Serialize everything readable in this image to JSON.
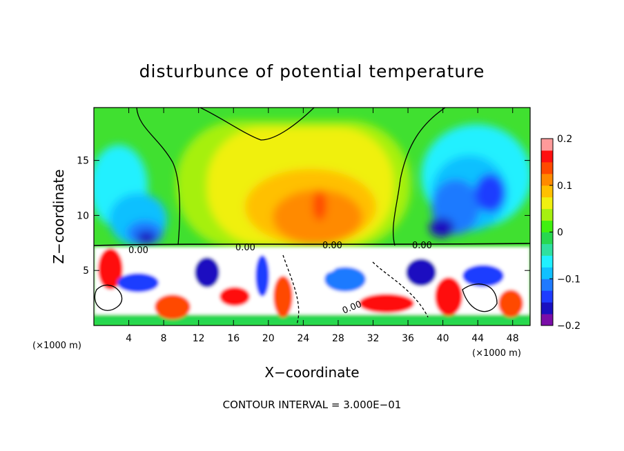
{
  "chart_data": {
    "type": "heatmap",
    "title": "disturbunce of potential temperature",
    "xlabel": "X−coordinate",
    "ylabel": "Z−coordinate",
    "x_unit": "(×1000 m)",
    "x_unit_right": "(×1000 m)",
    "xlim": [
      0,
      50
    ],
    "ylim": [
      0,
      19.8
    ],
    "xticks": [
      4,
      8,
      12,
      16,
      20,
      24,
      28,
      32,
      36,
      40,
      44,
      48
    ],
    "yticks": [
      5,
      10,
      15
    ],
    "colorbar": {
      "ticks": [
        0.2,
        0.1,
        0,
        -0.1,
        -0.2
      ],
      "tick_labels": [
        "0.2",
        "0.1",
        "0",
        "−0.1",
        "−0.2"
      ],
      "range": [
        -0.2,
        0.2
      ],
      "colors": [
        "#7a0ea8",
        "#1a10c0",
        "#1e3cff",
        "#1f7aff",
        "#10c0ff",
        "#20f0ff",
        "#30e0a0",
        "#28d850",
        "#40f010",
        "#a6f010",
        "#f0f010",
        "#ffc000",
        "#ff8a00",
        "#ff4a00",
        "#ff1010",
        "#ff9a9a"
      ]
    },
    "contour_labels": [
      "0.00",
      "0.00",
      "0.00",
      "0.00",
      "0.00"
    ],
    "footer": "CONTOUR INTERVAL = 3.000E−01"
  }
}
